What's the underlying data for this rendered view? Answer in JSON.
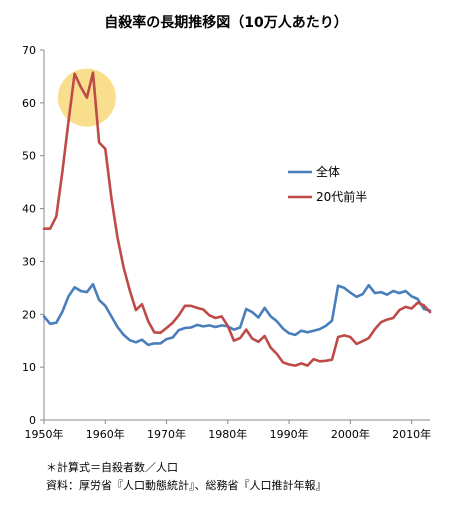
{
  "chart_data": {
    "type": "line",
    "title": "自殺率の長期推移図（10万人あたり）",
    "xlim": [
      1950,
      2013
    ],
    "ylim": [
      0,
      70
    ],
    "grid": false,
    "legend_position": "right",
    "x_ticks": [
      "1950年",
      "1960年",
      "1970年",
      "1980年",
      "1990年",
      "2000年",
      "2010年"
    ],
    "y_ticks": [
      "0",
      "10",
      "20",
      "30",
      "40",
      "50",
      "60",
      "70"
    ],
    "x": [
      1950,
      1951,
      1952,
      1953,
      1954,
      1955,
      1956,
      1957,
      1958,
      1959,
      1960,
      1961,
      1962,
      1963,
      1964,
      1965,
      1966,
      1967,
      1968,
      1969,
      1970,
      1971,
      1972,
      1973,
      1974,
      1975,
      1976,
      1977,
      1978,
      1979,
      1980,
      1981,
      1982,
      1983,
      1984,
      1985,
      1986,
      1987,
      1988,
      1989,
      1990,
      1991,
      1992,
      1993,
      1994,
      1995,
      1996,
      1997,
      1998,
      1999,
      2000,
      2001,
      2002,
      2003,
      2004,
      2005,
      2006,
      2007,
      2008,
      2009,
      2010,
      2011,
      2012,
      2013
    ],
    "series": [
      {
        "name": "全体",
        "color": "#4a7ebb",
        "values": [
          19.6,
          18.2,
          18.4,
          20.5,
          23.4,
          25.1,
          24.4,
          24.2,
          25.7,
          22.7,
          21.6,
          19.6,
          17.6,
          16.1,
          15.1,
          14.7,
          15.2,
          14.2,
          14.5,
          14.5,
          15.3,
          15.6,
          17.0,
          17.4,
          17.5,
          18.0,
          17.7,
          17.9,
          17.6,
          17.9,
          17.7,
          17.1,
          17.5,
          21.0,
          20.4,
          19.4,
          21.2,
          19.6,
          18.7,
          17.3,
          16.4,
          16.1,
          16.9,
          16.6,
          16.9,
          17.2,
          17.8,
          18.8,
          25.4,
          25.0,
          24.1,
          23.3,
          23.8,
          25.5,
          24.0,
          24.2,
          23.7,
          24.4,
          24.0,
          24.4,
          23.4,
          22.9,
          21.0,
          20.7
        ]
      },
      {
        "name": "20代前半",
        "color": "#be4b48",
        "values": [
          36.2,
          36.2,
          38.5,
          47.0,
          56.5,
          65.5,
          63.0,
          61.0,
          65.7,
          52.5,
          51.3,
          42.0,
          34.5,
          28.8,
          24.5,
          20.8,
          21.9,
          18.7,
          16.6,
          16.5,
          17.4,
          18.4,
          19.8,
          21.6,
          21.6,
          21.2,
          20.9,
          19.8,
          19.3,
          19.6,
          17.8,
          15.0,
          15.5,
          17.1,
          15.4,
          14.8,
          15.9,
          13.7,
          12.5,
          10.9,
          10.5,
          10.3,
          10.7,
          10.3,
          11.5,
          11.1,
          11.2,
          11.4,
          15.7,
          16.0,
          15.7,
          14.4,
          14.9,
          15.5,
          17.2,
          18.5,
          19.0,
          19.3,
          20.8,
          21.4,
          21.1,
          22.2,
          21.7,
          20.4
        ]
      }
    ]
  },
  "footnotes": {
    "formula": "＊計算式＝自殺者数／人口",
    "source": "資料：厚労省『人口動態統計』、総務省『人口推計年報』"
  },
  "highlight": {
    "color": "#f5c842",
    "x": 1957,
    "y": 61
  }
}
